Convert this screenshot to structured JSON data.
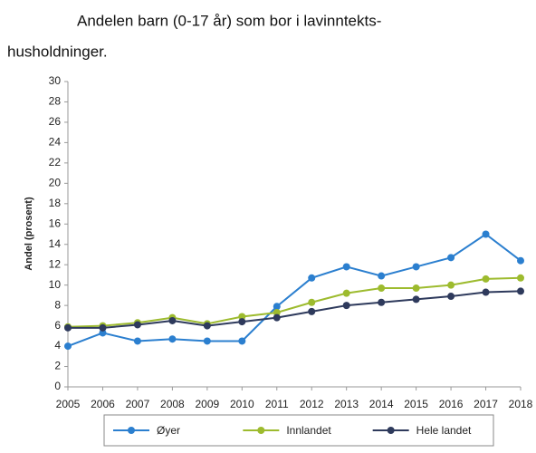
{
  "chart_data": {
    "type": "line",
    "title": [
      "Andelen barn (0-17 år) som bor i lavinntekts-",
      "husholdninger."
    ],
    "y_label": "Andel (prosent)",
    "x": [
      2005,
      2006,
      2007,
      2008,
      2009,
      2010,
      2011,
      2012,
      2013,
      2014,
      2015,
      2016,
      2017,
      2018
    ],
    "xlim": [
      2005,
      2018
    ],
    "xticks": [
      2005,
      2006,
      2007,
      2008,
      2009,
      2010,
      2011,
      2012,
      2013,
      2014,
      2015,
      2016,
      2017,
      2018
    ],
    "ylim": [
      0,
      30
    ],
    "yticks": [
      0,
      2,
      4,
      6,
      8,
      10,
      12,
      14,
      16,
      18,
      20,
      22,
      24,
      26,
      28,
      30
    ],
    "grid": false,
    "legend": "bottom",
    "series": [
      {
        "name": "Øyer",
        "color": "#2b7fcf",
        "values": [
          4.0,
          5.3,
          4.5,
          4.7,
          4.5,
          4.5,
          7.9,
          10.7,
          11.8,
          10.9,
          11.8,
          12.7,
          15.0,
          12.4
        ]
      },
      {
        "name": "Innlandet",
        "color": "#9dbb2e",
        "values": [
          5.9,
          6.0,
          6.3,
          6.8,
          6.2,
          6.9,
          7.3,
          8.3,
          9.2,
          9.7,
          9.7,
          10.0,
          10.6,
          10.7
        ]
      },
      {
        "name": "Hele landet",
        "color": "#2e3a5c",
        "values": [
          5.8,
          5.8,
          6.1,
          6.5,
          6.0,
          6.4,
          6.8,
          7.4,
          8.0,
          8.3,
          8.6,
          8.9,
          9.3,
          9.4
        ]
      }
    ]
  }
}
